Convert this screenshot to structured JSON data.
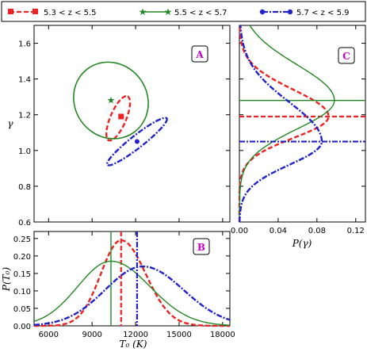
{
  "colors": {
    "s1": "#ee2222",
    "s2": "#228822",
    "s3": "#2222cc",
    "label": "#cc00cc"
  },
  "legend": [
    {
      "label": "5.3 < z < 5.5",
      "color": "#ee2222",
      "dash": "6,3",
      "marker": "square"
    },
    {
      "label": "5.5 < z < 5.7",
      "color": "#228822",
      "dash": "",
      "marker": "star"
    },
    {
      "label": "5.7 < z < 5.9",
      "color": "#2222cc",
      "dash": "7,2,2,2",
      "marker": "circle"
    }
  ],
  "chart_data": [
    {
      "id": "A",
      "type": "scatter",
      "panel_label": "A",
      "xlabel": "",
      "ylabel": "γ",
      "xlim": [
        5000,
        18500
      ],
      "ylim": [
        0.6,
        1.7
      ],
      "yticks": [
        "0.6",
        "0.8",
        "1.0",
        "1.2",
        "1.4",
        "1.6"
      ],
      "series": [
        {
          "name": "5.3 < z < 5.5",
          "point": [
            11000,
            1.19
          ],
          "ellipse": {
            "cx": 10800,
            "cy": 1.18,
            "rx": 1650,
            "ry": 0.02,
            "angle_deg": -67
          }
        },
        {
          "name": "5.5 < z < 5.7",
          "point": [
            10300,
            1.28
          ],
          "ellipse": {
            "cx": 10300,
            "cy": 1.28,
            "rx": 2500,
            "ry": 0.1,
            "angle_deg": -36
          }
        },
        {
          "name": "5.7 < z < 5.9",
          "point": [
            12100,
            1.05
          ],
          "ellipse": {
            "cx": 12100,
            "cy": 1.05,
            "rx": 2600,
            "ry": 0.016,
            "angle_deg": -38
          }
        }
      ]
    },
    {
      "id": "B",
      "type": "line",
      "panel_label": "B",
      "xlabel": "T₀ (K)",
      "ylabel": "P(T₀)",
      "xlim": [
        5000,
        18500
      ],
      "ylim": [
        0,
        0.27
      ],
      "xticks": [
        "6000",
        "9000",
        "12000",
        "15000",
        "18000"
      ],
      "yticks": [
        "0.00",
        "0.05",
        "0.10",
        "0.15",
        "0.20",
        "0.25"
      ],
      "series": [
        {
          "name": "5.3 < z < 5.5",
          "peak_x": 11000,
          "peak_y": 0.245,
          "markers": [
            11000
          ]
        },
        {
          "name": "5.5 < z < 5.7",
          "peak_x": 10300,
          "peak_y": 0.185,
          "markers": [
            10300
          ]
        },
        {
          "name": "5.7 < z < 5.9",
          "peak_x": 12500,
          "peak_y": 0.17,
          "markers": [
            12100
          ]
        }
      ]
    },
    {
      "id": "C",
      "type": "line",
      "panel_label": "C",
      "xlabel": "P(γ)",
      "ylabel": "",
      "xlim": [
        0,
        0.13
      ],
      "ylim": [
        0.6,
        1.7
      ],
      "xticks": [
        "0.00",
        "0.04",
        "0.08",
        "0.12"
      ],
      "series": [
        {
          "name": "5.3 < z < 5.5",
          "peak_x": 0.092,
          "peak_y": 1.19,
          "markers": [
            1.19
          ]
        },
        {
          "name": "5.5 < z < 5.7",
          "peak_x": 0.098,
          "peak_y": 1.28,
          "markers": [
            1.28
          ]
        },
        {
          "name": "5.7 < z < 5.9",
          "peak_x": 0.085,
          "peak_y": 1.05,
          "markers": [
            1.05
          ]
        }
      ]
    }
  ]
}
